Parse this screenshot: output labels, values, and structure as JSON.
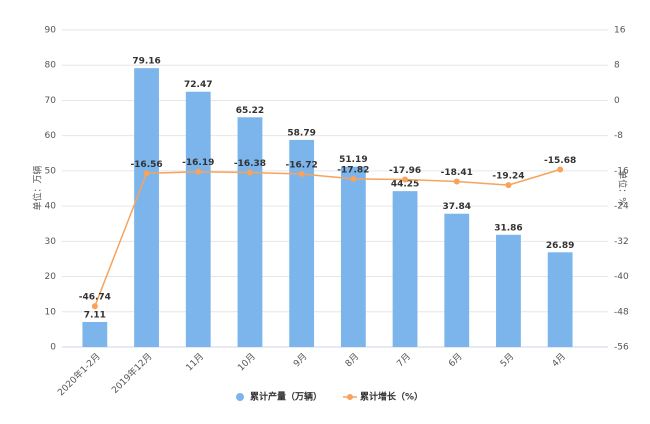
{
  "chart_data": {
    "type": "bar",
    "y_label": "单位：万辆",
    "y2_label": "单位：%",
    "categories": [
      "2020年1-2月",
      "2019年12月",
      "11月",
      "10月",
      "9月",
      "8月",
      "7月",
      "6月",
      "5月",
      "4月"
    ],
    "series": [
      {
        "name": "累计产量（万辆）",
        "type": "bar",
        "color": "#7cb5ec",
        "values": [
          7.11,
          79.16,
          72.47,
          65.22,
          58.79,
          51.19,
          44.25,
          37.84,
          31.86,
          26.89
        ]
      },
      {
        "name": "累计增长（%）",
        "type": "line",
        "axis": "y2",
        "color": "#f7a35c",
        "values": [
          -46.74,
          -16.56,
          -16.19,
          -16.38,
          -16.72,
          -17.82,
          -17.96,
          -18.41,
          -19.24,
          -15.68
        ]
      }
    ],
    "ylim": [
      0,
      90
    ],
    "yticks": [
      0,
      10,
      20,
      30,
      40,
      50,
      60,
      70,
      80,
      90
    ],
    "y2lim": [
      -56,
      16
    ],
    "y2ticks": [
      -56,
      -48,
      -40,
      -32,
      -24,
      -16,
      -8,
      0,
      8,
      16
    ],
    "grid": true,
    "legend": "bottom"
  }
}
